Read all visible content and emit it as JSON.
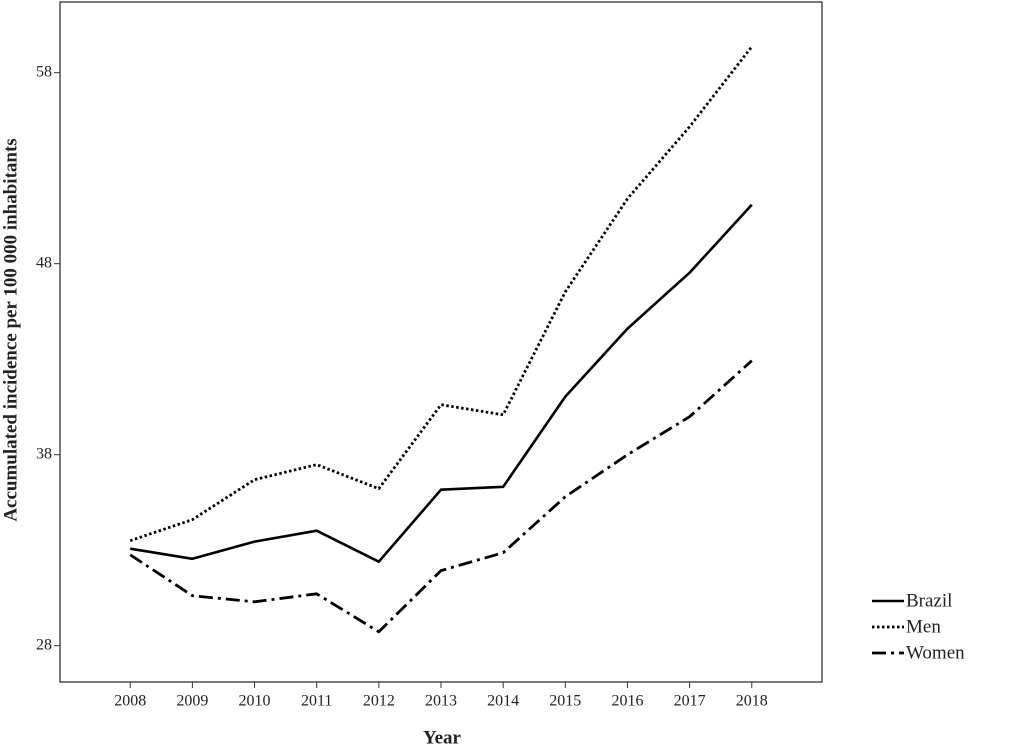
{
  "chart_data": {
    "type": "line",
    "x_label": "Year",
    "y_label": "Accumulated incidence per 100 000 inhabitants",
    "x": [
      2008,
      2009,
      2010,
      2011,
      2012,
      2013,
      2014,
      2015,
      2016,
      2017,
      2018
    ],
    "xlim": [
      2006.87,
      2019.13
    ],
    "xticks": [
      2008,
      2009,
      2010,
      2011,
      2012,
      2013,
      2014,
      2015,
      2016,
      2017,
      2018
    ],
    "ylim": [
      26.1,
      61.7
    ],
    "yticks": [
      28,
      38,
      48,
      58
    ],
    "grid": false,
    "legend": "outside-right-bottom",
    "series": [
      {
        "name": "Brazil",
        "color": "#000000",
        "linestyle": "solid",
        "values": [
          33.08,
          32.55,
          33.45,
          34.02,
          32.4,
          36.17,
          36.32,
          41.04,
          44.6,
          47.53,
          51.09
        ]
      },
      {
        "name": "Men",
        "color": "#000000",
        "linestyle": "dotted",
        "values": [
          33.5,
          34.6,
          36.69,
          37.48,
          36.22,
          40.62,
          40.09,
          46.53,
          51.4,
          55.17,
          59.36
        ]
      },
      {
        "name": "Women",
        "color": "#000000",
        "linestyle": "dashdot",
        "values": [
          32.76,
          30.62,
          30.3,
          30.72,
          28.73,
          31.93,
          32.87,
          35.8,
          38.0,
          39.99,
          42.92
        ]
      }
    ]
  }
}
